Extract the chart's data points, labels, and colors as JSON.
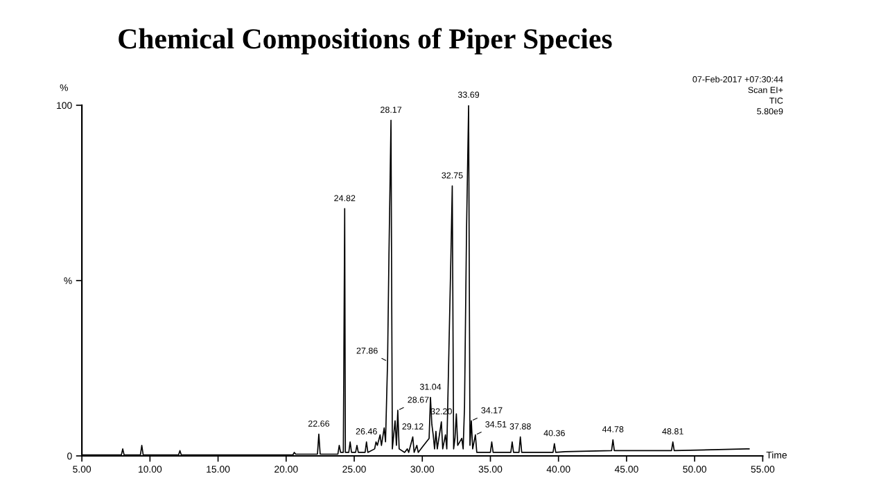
{
  "chart_data": {
    "type": "line",
    "title": "Chemical Compositions of Piper Species",
    "xlabel": "Time",
    "ylabel": "%",
    "annotations": [
      "07-Feb-2017 +07:30:44",
      "Scan EI+",
      "TIC",
      "5.80e9",
      {
        "text": "22.66",
        "x": 22.4,
        "y": 6.2
      },
      {
        "text": "24.82",
        "x": 24.3,
        "y": 70.5
      },
      {
        "text": "26.46",
        "x": 25.9,
        "y": 4
      },
      {
        "text": "28.17",
        "x": 27.7,
        "y": 95.7
      },
      {
        "text": "27.86",
        "x": 27.45,
        "y": 27
      },
      {
        "text": "28.67",
        "x": 28.2,
        "y": 13
      },
      {
        "text": "29.12",
        "x": 29.3,
        "y": 5.4
      },
      {
        "text": "31.04",
        "x": 30.6,
        "y": 16.7
      },
      {
        "text": "32.20",
        "x": 31.4,
        "y": 9.7
      },
      {
        "text": "32.75",
        "x": 32.2,
        "y": 77
      },
      {
        "text": "33.69",
        "x": 33.4,
        "y": 100
      },
      {
        "text": "34.17",
        "x": 33.6,
        "y": 10
      },
      {
        "text": "34.51",
        "x": 33.9,
        "y": 6
      },
      {
        "text": "37.88",
        "x": 37.2,
        "y": 5.4
      },
      {
        "text": "40.36",
        "x": 39.7,
        "y": 3.5
      },
      {
        "text": "44.78",
        "x": 44.0,
        "y": 4.6
      },
      {
        "text": "48.81",
        "x": 48.4,
        "y": 4
      }
    ],
    "xlim": [
      5,
      55
    ],
    "ylim": [
      0,
      100
    ],
    "xticks": [
      {
        "value": 5,
        "label": "5.00"
      },
      {
        "value": 10,
        "label": "10.00"
      },
      {
        "value": 15,
        "label": "15.00"
      },
      {
        "value": 20,
        "label": "20.00"
      },
      {
        "value": 25,
        "label": "25.00"
      },
      {
        "value": 30,
        "label": "30.00"
      },
      {
        "value": 35,
        "label": "35.00"
      },
      {
        "value": 40,
        "label": "40.00"
      },
      {
        "value": 45,
        "label": "45.00"
      },
      {
        "value": 50,
        "label": "50.00"
      },
      {
        "value": 55,
        "label": "55.00"
      }
    ],
    "yticks": [
      0,
      {
        "value": 50,
        "label": "%"
      },
      100
    ],
    "grid": false,
    "marker": "none",
    "line_style": "solid",
    "series": [
      {
        "color": "#000000",
        "x": [
          5.0,
          7.9,
          8.0,
          8.1,
          9.3,
          9.4,
          9.5,
          12.1,
          12.2,
          12.3,
          20.5,
          20.6,
          20.7,
          22.3,
          22.4,
          22.5,
          23.8,
          23.9,
          24.0,
          24.2,
          24.25,
          24.3,
          24.35,
          24.6,
          24.7,
          24.8,
          25.1,
          25.2,
          25.3,
          25.8,
          25.9,
          26.0,
          26.5,
          26.6,
          26.7,
          26.9,
          27.0,
          27.2,
          27.3,
          27.45,
          27.55,
          27.7,
          27.8,
          28.0,
          28.1,
          28.2,
          28.3,
          28.7,
          28.9,
          29.0,
          29.3,
          29.4,
          29.6,
          29.7,
          30.1,
          30.5,
          30.6,
          30.7,
          30.8,
          30.9,
          31.0,
          31.1,
          31.4,
          31.5,
          31.7,
          31.8,
          32.1,
          32.2,
          32.3,
          32.4,
          32.5,
          32.6,
          32.9,
          33.0,
          33.1,
          33.25,
          33.4,
          33.5,
          33.6,
          33.7,
          33.9,
          34.0,
          35.0,
          35.1,
          35.2,
          36.5,
          36.6,
          36.7,
          37.1,
          37.2,
          37.3,
          39.6,
          39.7,
          39.8,
          40.5,
          43.9,
          44.0,
          44.1,
          48.3,
          48.4,
          48.5,
          53.8,
          54.0
        ],
        "values": [
          0.3,
          0.3,
          2,
          0.3,
          0.3,
          3,
          0.3,
          0.3,
          1.5,
          0.3,
          0.3,
          1,
          0.5,
          0.5,
          6.2,
          0.5,
          0.5,
          3,
          1,
          1,
          35,
          70.5,
          1,
          1,
          4,
          1,
          1,
          3,
          1,
          1,
          4,
          1,
          2,
          4,
          3,
          6,
          3,
          8,
          4,
          27,
          57,
          95.7,
          2,
          10,
          3,
          13,
          2,
          1,
          2,
          1,
          5.4,
          1,
          3,
          1,
          3,
          5,
          16.7,
          9,
          6,
          2,
          7,
          2,
          9.7,
          2,
          6,
          2,
          57,
          77,
          2,
          5,
          12,
          3,
          5,
          2,
          14,
          65,
          100,
          3,
          10,
          2,
          6,
          1,
          1,
          4,
          1,
          1,
          4,
          1,
          1,
          5.4,
          1,
          1,
          3.5,
          1,
          1.2,
          1.5,
          4.6,
          1.5,
          1.5,
          4,
          1.5,
          2,
          2
        ]
      }
    ]
  }
}
